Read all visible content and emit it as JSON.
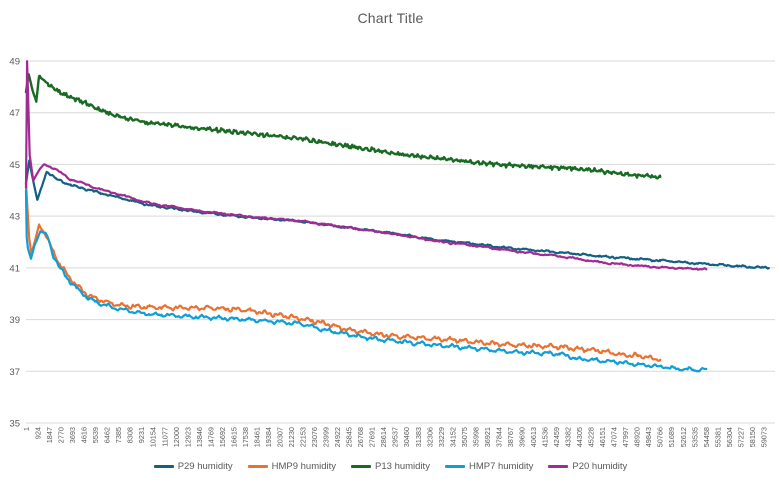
{
  "chart_data": {
    "type": "line",
    "title": "Chart Title",
    "legend_position": "bottom",
    "colors": {
      "text": "#595959",
      "grid": "#D9D9D9",
      "background": "#FFFFFF"
    },
    "y_axis": {
      "min": 35,
      "max": 49,
      "step": 2,
      "grid": true,
      "ticks": [
        "35",
        "37",
        "39",
        "41",
        "43",
        "45",
        "47",
        "49"
      ]
    },
    "x_axis": {
      "grid": false,
      "tick_start": 1,
      "tick_step": 923,
      "axis_max": 60000,
      "labels": [
        "1",
        "924",
        "1847",
        "2770",
        "3693",
        "4616",
        "5539",
        "6462",
        "7385",
        "8308",
        "9231",
        "10154",
        "11077",
        "12000",
        "12923",
        "13846",
        "14769",
        "15692",
        "16615",
        "17538",
        "18461",
        "19384",
        "20307",
        "21230",
        "22153",
        "23076",
        "23999",
        "24922",
        "25845",
        "26768",
        "27691",
        "28614",
        "29537",
        "30460",
        "31383",
        "32306",
        "33229",
        "34152",
        "35075",
        "35998",
        "36921",
        "37844",
        "38767",
        "39690",
        "40613",
        "41536",
        "42459",
        "43382",
        "44305",
        "45228",
        "46151",
        "47074",
        "47997",
        "48920",
        "49843",
        "50766",
        "51689",
        "52612",
        "53535",
        "54458",
        "55381",
        "56304",
        "57227",
        "58150",
        "59073"
      ]
    },
    "series": [
      {
        "name": "P29 humidity",
        "color": "#156082",
        "seed": 11,
        "noise": {
          "wave_amp": 0.02,
          "wave_freq": 0.004,
          "jit": 0.022
        },
        "keypoints": [
          [
            0,
            44.25
          ],
          [
            260,
            45.15
          ],
          [
            520,
            44.5
          ],
          [
            905,
            43.62
          ],
          [
            1655,
            44.72
          ],
          [
            2400,
            44.45
          ],
          [
            3600,
            44.2
          ],
          [
            5900,
            43.9
          ],
          [
            9900,
            43.42
          ],
          [
            13900,
            43.15
          ],
          [
            17900,
            42.95
          ],
          [
            21900,
            42.8
          ],
          [
            25900,
            42.55
          ],
          [
            29900,
            42.3
          ],
          [
            33000,
            42.08
          ],
          [
            35500,
            41.95
          ],
          [
            39000,
            41.75
          ],
          [
            42750,
            41.6
          ],
          [
            45900,
            41.45
          ],
          [
            48000,
            41.38
          ],
          [
            50800,
            41.28
          ],
          [
            53000,
            41.2
          ],
          [
            55400,
            41.12
          ],
          [
            57500,
            41.05
          ],
          [
            59500,
            41.0
          ]
        ]
      },
      {
        "name": "HMP9 humidity",
        "color": "#E97132",
        "seed": 22,
        "noise": {
          "wave_amp": 0.055,
          "wave_freq": 0.0055,
          "jit": 0.03
        },
        "keypoints": [
          [
            0,
            44.3
          ],
          [
            250,
            42.2
          ],
          [
            430,
            41.55
          ],
          [
            700,
            42.0
          ],
          [
            1050,
            42.65
          ],
          [
            1500,
            42.35
          ],
          [
            2200,
            41.6
          ],
          [
            2700,
            41.15
          ],
          [
            3600,
            40.55
          ],
          [
            4900,
            39.95
          ],
          [
            5900,
            39.75
          ],
          [
            7500,
            39.55
          ],
          [
            9900,
            39.47
          ],
          [
            12000,
            39.45
          ],
          [
            13900,
            39.45
          ],
          [
            15900,
            39.42
          ],
          [
            17400,
            39.38
          ],
          [
            19900,
            39.2
          ],
          [
            21900,
            39.05
          ],
          [
            23900,
            38.85
          ],
          [
            25900,
            38.6
          ],
          [
            27900,
            38.45
          ],
          [
            29900,
            38.35
          ],
          [
            31900,
            38.28
          ],
          [
            33900,
            38.22
          ],
          [
            35500,
            38.15
          ],
          [
            37900,
            38.05
          ],
          [
            39900,
            38.0
          ],
          [
            42750,
            37.95
          ],
          [
            44500,
            37.85
          ],
          [
            45900,
            37.8
          ],
          [
            47500,
            37.65
          ],
          [
            49000,
            37.6
          ],
          [
            50800,
            37.45
          ]
        ]
      },
      {
        "name": "P13 humidity",
        "color": "#196B24",
        "seed": 33,
        "noise": {
          "wave_amp": 0.035,
          "wave_freq": 0.012,
          "jit": 0.045
        },
        "keypoints": [
          [
            0,
            47.8
          ],
          [
            215,
            48.5
          ],
          [
            560,
            47.8
          ],
          [
            825,
            47.45
          ],
          [
            1050,
            48.42
          ],
          [
            1800,
            48.1
          ],
          [
            2700,
            47.8
          ],
          [
            3600,
            47.6
          ],
          [
            4900,
            47.35
          ],
          [
            5900,
            47.1
          ],
          [
            7500,
            46.85
          ],
          [
            9900,
            46.6
          ],
          [
            12000,
            46.5
          ],
          [
            13900,
            46.4
          ],
          [
            17900,
            46.2
          ],
          [
            21900,
            46.0
          ],
          [
            25900,
            45.7
          ],
          [
            29900,
            45.4
          ],
          [
            33000,
            45.25
          ],
          [
            35500,
            45.1
          ],
          [
            39000,
            44.95
          ],
          [
            42750,
            44.88
          ],
          [
            45900,
            44.75
          ],
          [
            48300,
            44.6
          ],
          [
            50800,
            44.5
          ]
        ]
      },
      {
        "name": "HMP7 humidity",
        "color": "#0F9ED5",
        "seed": 44,
        "noise": {
          "wave_amp": 0.045,
          "wave_freq": 0.005,
          "jit": 0.028
        },
        "keypoints": [
          [
            0,
            44.0
          ],
          [
            60,
            42.2
          ],
          [
            150,
            41.75
          ],
          [
            400,
            41.35
          ],
          [
            700,
            41.9
          ],
          [
            1150,
            42.42
          ],
          [
            1700,
            42.25
          ],
          [
            2200,
            41.45
          ],
          [
            2700,
            41.0
          ],
          [
            3600,
            40.42
          ],
          [
            4900,
            39.85
          ],
          [
            5900,
            39.62
          ],
          [
            7500,
            39.4
          ],
          [
            9900,
            39.2
          ],
          [
            12000,
            39.15
          ],
          [
            13900,
            39.1
          ],
          [
            15900,
            39.05
          ],
          [
            17400,
            39.0
          ],
          [
            19900,
            38.92
          ],
          [
            21900,
            38.85
          ],
          [
            23900,
            38.6
          ],
          [
            25900,
            38.42
          ],
          [
            27900,
            38.25
          ],
          [
            29900,
            38.15
          ],
          [
            31900,
            38.05
          ],
          [
            33900,
            37.98
          ],
          [
            35500,
            37.9
          ],
          [
            37900,
            37.8
          ],
          [
            39900,
            37.72
          ],
          [
            42750,
            37.68
          ],
          [
            44000,
            37.5
          ],
          [
            45900,
            37.42
          ],
          [
            48000,
            37.32
          ],
          [
            50800,
            37.18
          ],
          [
            52600,
            37.08
          ],
          [
            54500,
            37.05
          ]
        ]
      },
      {
        "name": "P20 humidity",
        "color": "#A02B93",
        "seed": 55,
        "noise": {
          "wave_amp": 0.018,
          "wave_freq": 0.0035,
          "jit": 0.02
        },
        "keypoints": [
          [
            0,
            44.1
          ],
          [
            90,
            49.0
          ],
          [
            300,
            45.35
          ],
          [
            585,
            44.37
          ],
          [
            950,
            44.7
          ],
          [
            1440,
            45.02
          ],
          [
            2400,
            44.8
          ],
          [
            3600,
            44.42
          ],
          [
            5900,
            44.05
          ],
          [
            9900,
            43.5
          ],
          [
            13900,
            43.2
          ],
          [
            17900,
            42.98
          ],
          [
            21900,
            42.82
          ],
          [
            25900,
            42.55
          ],
          [
            29900,
            42.28
          ],
          [
            33000,
            42.02
          ],
          [
            35500,
            41.88
          ],
          [
            39000,
            41.65
          ],
          [
            42750,
            41.45
          ],
          [
            45900,
            41.22
          ],
          [
            48000,
            41.12
          ],
          [
            50800,
            41.02
          ],
          [
            52600,
            40.98
          ],
          [
            54500,
            40.95
          ]
        ]
      }
    ]
  }
}
